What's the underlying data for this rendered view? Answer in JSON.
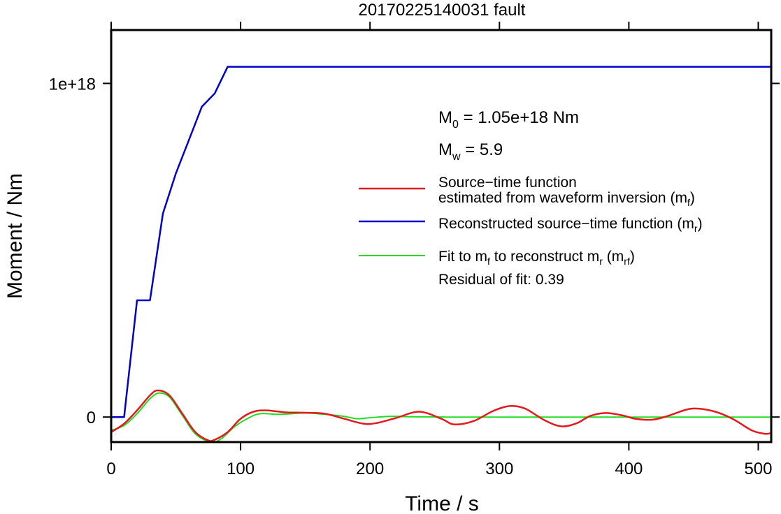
{
  "chart_data": {
    "type": "line",
    "title": "20170225140031 fault",
    "xlabel": "Time / s",
    "ylabel": "Moment / Nm",
    "xlim": [
      0,
      510
    ],
    "ylim": [
      -7.5e+16,
      1.16e+18
    ],
    "x_ticks": [
      0,
      100,
      200,
      300,
      400,
      500
    ],
    "x_tick_labels": [
      "0",
      "100",
      "200",
      "300",
      "400",
      "500"
    ],
    "y_ticks": [
      0,
      1e+18
    ],
    "y_tick_labels": [
      "0",
      "1e+18"
    ],
    "grid": false,
    "top_axis_ticks": true,
    "right_axis_ticks": true,
    "annotations": {
      "m0_prefix": "M",
      "m0_sub": "0",
      "m0_value": " = 1.05e+18 Nm",
      "mw_prefix": "M",
      "mw_sub": "w",
      "mw_value": " = 5.9",
      "residual": "Residual of fit: 0.39"
    },
    "legend": {
      "placement": "right",
      "entries": [
        {
          "line1": "Source−time function",
          "line2a": "estimated from waveform inversion (m",
          "line2sub": "f",
          "line2b": ")",
          "color": "#e31a1c"
        },
        {
          "text_a": "Reconstructed source−time function (m",
          "text_sub": "r",
          "text_b": ")",
          "color": "#0000c8"
        },
        {
          "text_a": "Fit to m",
          "text_sub": "f",
          "text_b": " to reconstruct m",
          "text_sub2": "r",
          "text_c": " (m",
          "text_sub3": "rf",
          "text_d": ")",
          "color": "#22dd22"
        }
      ]
    },
    "series": [
      {
        "key": "reconstructed",
        "color": "#0000c8",
        "x": [
          0,
          10,
          20,
          30,
          40,
          50,
          60,
          70,
          80,
          90,
          100,
          150,
          200,
          250,
          300,
          350,
          400,
          450,
          510
        ],
        "y": [
          0,
          0,
          3.5e+17,
          3.5e+17,
          6.1e+17,
          7.3e+17,
          8.3e+17,
          9.3e+17,
          9.7e+17,
          1.05e+18,
          1.05e+18,
          1.05e+18,
          1.05e+18,
          1.05e+18,
          1.05e+18,
          1.05e+18,
          1.05e+18,
          1.05e+18,
          1.05e+18
        ]
      },
      {
        "key": "estimated",
        "color": "#e31a1c",
        "x": [
          0,
          10,
          20,
          30,
          36,
          45,
          55,
          65,
          75,
          80,
          90,
          100,
          110,
          120,
          135,
          150,
          165,
          180,
          195,
          205,
          220,
          238,
          255,
          265,
          280,
          295,
          308,
          320,
          335,
          348,
          360,
          370,
          382,
          395,
          405,
          418,
          430,
          448,
          465,
          480,
          495,
          505,
          510
        ],
        "y": [
          -4.5e+16,
          -2e+16,
          2e+16,
          6.5e+16,
          8e+16,
          6.5e+16,
          1e+16,
          -4.5e+16,
          -7e+16,
          -6.8e+16,
          -4.5e+16,
          -5000000000000000.0,
          1.6e+16,
          2e+16,
          1.4e+16,
          1.3e+16,
          1e+16,
          -5000000000000000.0,
          -2e+16,
          -1.8e+16,
          -3000000000000000.0,
          1.6e+16,
          -5000000000000000.0,
          -2.2e+16,
          -1.2e+16,
          1.8e+16,
          3.3e+16,
          2.5e+16,
          -1e+16,
          -2.8e+16,
          -1.8e+16,
          3000000000000000.0,
          1.2e+16,
          5000000000000000.0,
          -5000000000000000.0,
          -8000000000000000.0,
          3000000000000000.0,
          2.5e+16,
          1.8e+16,
          -5000000000000000.0,
          -4e+16,
          -5e+16,
          -4.8e+16
        ]
      },
      {
        "key": "fit",
        "color": "#22dd22",
        "x": [
          0,
          10,
          20,
          30,
          37,
          45,
          55,
          65,
          77,
          85,
          95,
          105,
          115,
          130,
          150,
          165,
          180,
          190,
          200,
          215,
          230,
          260,
          300,
          350,
          400,
          450,
          510
        ],
        "y": [
          -4e+16,
          -2.5e+16,
          1e+16,
          5.5e+16,
          7.2e+16,
          6e+16,
          5000000000000000.0,
          -5e+16,
          -7.5e+16,
          -6.5e+16,
          -3e+16,
          -5000000000000000.0,
          1e+16,
          8000000000000000.0,
          1.2e+16,
          8000000000000000.0,
          2000000000000000.0,
          -5000000000000000.0,
          -2000000000000000.0,
          2000000000000000.0,
          1000000000000000.0,
          0.0,
          0.0,
          0.0,
          0.0,
          0.0,
          0.0
        ]
      }
    ]
  }
}
